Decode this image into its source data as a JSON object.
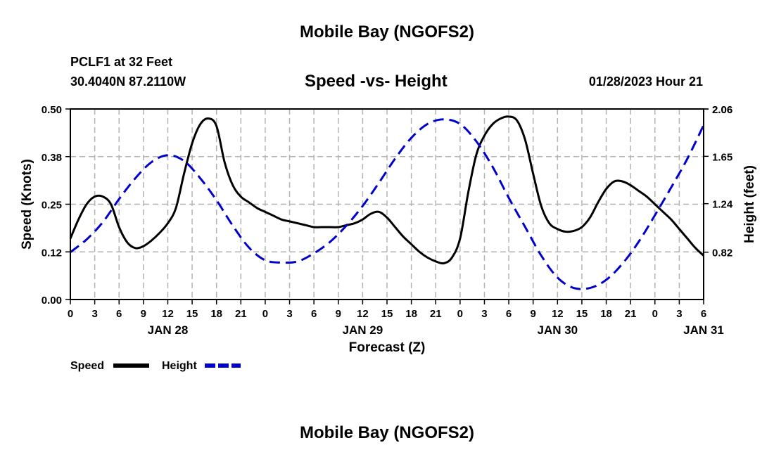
{
  "header": {
    "title": "Mobile Bay (NGOFS2)",
    "station": "PCLF1 at 32 Feet",
    "coords": "30.4040N  87.2110W",
    "subtitle": "Speed -vs- Height",
    "datetime": "01/28/2023 Hour 21"
  },
  "footer": {
    "title": "Mobile Bay (NGOFS2)"
  },
  "chart_data": {
    "type": "line",
    "xlabel": "Forecast (Z)",
    "ylabel_left": "Speed (Knots)",
    "ylabel_right": "Height (feet)",
    "x_tick_labels": [
      "0",
      "3",
      "6",
      "9",
      "12",
      "15",
      "18",
      "21",
      "0",
      "3",
      "6",
      "9",
      "12",
      "15",
      "18",
      "21",
      "0",
      "3",
      "6",
      "9",
      "12",
      "15",
      "18",
      "21",
      "0",
      "3",
      "6"
    ],
    "date_labels": [
      {
        "label": "JAN 28",
        "hour": 12
      },
      {
        "label": "JAN 29",
        "hour": 36
      },
      {
        "label": "JAN 30",
        "hour": 60
      },
      {
        "label": "JAN 31",
        "hour": 78
      }
    ],
    "xlim": [
      0,
      78
    ],
    "ylim_left": [
      0.0,
      0.5
    ],
    "ylim_right": [
      0.41,
      2.06
    ],
    "y_ticks_left": [
      "0.00",
      "0.12",
      "0.25",
      "0.38",
      "0.50"
    ],
    "y_ticks_right": [
      "0.82",
      "1.24",
      "1.65",
      "2.06"
    ],
    "grid": true,
    "legend_position": "bottom-left",
    "series": [
      {
        "name": "Speed",
        "axis": "left",
        "color": "#000000",
        "dash": "solid",
        "x": [
          0,
          1,
          2,
          3,
          4,
          5,
          6,
          7,
          8,
          9,
          10,
          11,
          12,
          13,
          14,
          15,
          16,
          17,
          18,
          19,
          20,
          21,
          22,
          23,
          24,
          25,
          26,
          27,
          28,
          29,
          30,
          31,
          32,
          33,
          34,
          35,
          36,
          37,
          38,
          39,
          40,
          41,
          42,
          43,
          44,
          45,
          46,
          47,
          48,
          49,
          50,
          51,
          52,
          53,
          54,
          55,
          56,
          57,
          58,
          59,
          60,
          61,
          62,
          63,
          64,
          65,
          66,
          67,
          68,
          69,
          70,
          71,
          72,
          73,
          74,
          75,
          76,
          77,
          78
        ],
        "values": [
          0.16,
          0.21,
          0.25,
          0.27,
          0.27,
          0.25,
          0.19,
          0.15,
          0.135,
          0.14,
          0.155,
          0.175,
          0.2,
          0.24,
          0.33,
          0.41,
          0.46,
          0.475,
          0.455,
          0.36,
          0.3,
          0.27,
          0.255,
          0.24,
          0.23,
          0.22,
          0.21,
          0.205,
          0.2,
          0.195,
          0.19,
          0.19,
          0.19,
          0.19,
          0.195,
          0.2,
          0.21,
          0.225,
          0.23,
          0.215,
          0.19,
          0.165,
          0.145,
          0.125,
          0.11,
          0.1,
          0.095,
          0.11,
          0.16,
          0.28,
          0.38,
          0.43,
          0.46,
          0.475,
          0.48,
          0.47,
          0.42,
          0.33,
          0.245,
          0.2,
          0.185,
          0.178,
          0.18,
          0.19,
          0.215,
          0.255,
          0.29,
          0.31,
          0.31,
          0.3,
          0.285,
          0.27,
          0.25,
          0.23,
          0.21,
          0.185,
          0.16,
          0.135,
          0.115
        ]
      },
      {
        "name": "Height",
        "axis": "right",
        "color": "#0000cc",
        "dash": "dashed",
        "x": [
          0,
          2,
          4,
          6,
          8,
          10,
          12,
          14,
          16,
          18,
          20,
          22,
          24,
          26,
          28,
          30,
          32,
          34,
          36,
          38,
          40,
          42,
          44,
          46,
          48,
          50,
          52,
          54,
          56,
          58,
          60,
          62,
          64,
          66,
          68,
          70,
          72,
          74,
          76,
          78
        ],
        "values": [
          0.82,
          0.93,
          1.08,
          1.28,
          1.46,
          1.6,
          1.66,
          1.61,
          1.46,
          1.27,
          1.05,
          0.86,
          0.75,
          0.73,
          0.74,
          0.81,
          0.91,
          1.05,
          1.22,
          1.42,
          1.63,
          1.81,
          1.93,
          1.97,
          1.93,
          1.78,
          1.56,
          1.29,
          1.04,
          0.79,
          0.6,
          0.51,
          0.51,
          0.58,
          0.72,
          0.91,
          1.14,
          1.38,
          1.63,
          1.92
        ]
      }
    ]
  }
}
